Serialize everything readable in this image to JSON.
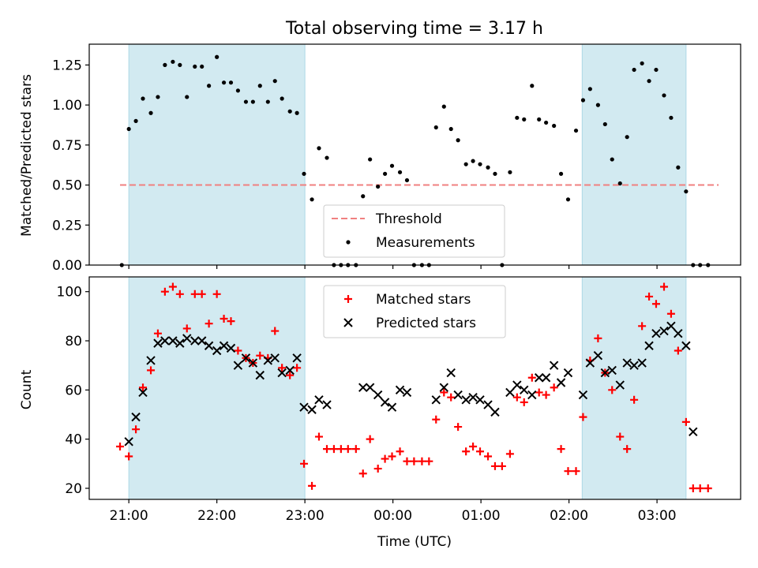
{
  "figure": {
    "title": "Total observing time = 3.17 h"
  },
  "chart_data": [
    {
      "type": "scatter",
      "panel": "top",
      "ylabel": "Matched/Predicted stars",
      "xlim": [
        20.55,
        27.95
      ],
      "ylim": [
        0,
        1.38
      ],
      "yticks": [
        0.0,
        0.25,
        0.5,
        0.75,
        1.0,
        1.25
      ],
      "ytick_labels": [
        "0.00",
        "0.25",
        "0.50",
        "0.75",
        "1.00",
        "1.25"
      ],
      "xticks": [
        21,
        22,
        23,
        24,
        25,
        26,
        27
      ],
      "shaded_spans": [
        [
          21.0,
          23.0
        ],
        [
          26.15,
          27.33
        ]
      ],
      "shade_color": "#add8e6",
      "threshold": {
        "name": "Threshold",
        "value": 0.5,
        "x_range": [
          20.9,
          27.7
        ],
        "color": "#f08080"
      },
      "legend": {
        "position": "lower-center",
        "entries": [
          "Threshold",
          "Measurements"
        ]
      },
      "series": [
        {
          "name": "Measurements",
          "color": "#000000",
          "x": [
            20.92,
            21.0,
            21.08,
            21.16,
            21.25,
            21.33,
            21.41,
            21.5,
            21.58,
            21.66,
            21.75,
            21.83,
            21.91,
            22.0,
            22.08,
            22.16,
            22.24,
            22.33,
            22.41,
            22.49,
            22.58,
            22.66,
            22.74,
            22.83,
            22.91,
            22.99,
            23.08,
            23.16,
            23.25,
            23.33,
            23.41,
            23.49,
            23.58,
            23.66,
            23.74,
            23.83,
            23.91,
            23.99,
            24.08,
            24.16,
            24.24,
            24.33,
            24.41,
            24.49,
            24.58,
            24.66,
            24.74,
            24.83,
            24.91,
            24.99,
            25.08,
            25.16,
            25.24,
            25.33,
            25.41,
            25.49,
            25.58,
            25.66,
            25.74,
            25.83,
            25.91,
            25.99,
            26.08,
            26.16,
            26.24,
            26.33,
            26.41,
            26.49,
            26.58,
            26.66,
            26.74,
            26.83,
            26.91,
            26.99,
            27.08,
            27.16,
            27.24,
            27.33,
            27.41,
            27.49,
            27.58
          ],
          "y": [
            0.0,
            0.85,
            0.9,
            1.04,
            0.95,
            1.05,
            1.25,
            1.27,
            1.25,
            1.05,
            1.24,
            1.24,
            1.12,
            1.3,
            1.14,
            1.14,
            1.09,
            1.02,
            1.02,
            1.12,
            1.02,
            1.15,
            1.04,
            0.96,
            0.95,
            0.57,
            0.41,
            0.73,
            0.67,
            0.0,
            0.0,
            0.0,
            0.0,
            0.43,
            0.66,
            0.49,
            0.57,
            0.62,
            0.58,
            0.53,
            0.0,
            0.0,
            0.0,
            0.86,
            0.99,
            0.85,
            0.78,
            0.63,
            0.65,
            0.63,
            0.61,
            0.57,
            0.0,
            0.58,
            0.92,
            0.91,
            1.12,
            0.91,
            0.89,
            0.87,
            0.57,
            0.41,
            0.84,
            1.03,
            1.1,
            1.0,
            0.88,
            0.66,
            0.51,
            0.8,
            1.22,
            1.26,
            1.15,
            1.22,
            1.06,
            0.92,
            0.61,
            0.46,
            0.0,
            0.0,
            0.0
          ]
        }
      ]
    },
    {
      "type": "scatter",
      "panel": "bottom",
      "xlabel": "Time (UTC)",
      "ylabel": "Count",
      "xlim": [
        20.55,
        27.95
      ],
      "ylim": [
        15.5,
        106
      ],
      "yticks": [
        20,
        40,
        60,
        80,
        100
      ],
      "xticks": [
        21,
        22,
        23,
        24,
        25,
        26,
        27
      ],
      "xtick_labels": [
        "21:00",
        "22:00",
        "23:00",
        "00:00",
        "01:00",
        "02:00",
        "03:00"
      ],
      "shaded_spans": [
        [
          21.0,
          23.0
        ],
        [
          26.15,
          27.33
        ]
      ],
      "shade_color": "#add8e6",
      "legend": {
        "position": "top-center",
        "entries": [
          "Matched stars",
          "Predicted stars"
        ]
      },
      "series": [
        {
          "name": "Matched stars",
          "marker": "+",
          "color": "#ff0000",
          "x": [
            20.9,
            21.0,
            21.08,
            21.16,
            21.25,
            21.33,
            21.41,
            21.5,
            21.58,
            21.66,
            21.75,
            21.83,
            21.91,
            22.0,
            22.08,
            22.16,
            22.24,
            22.33,
            22.41,
            22.49,
            22.58,
            22.66,
            22.74,
            22.83,
            22.91,
            22.99,
            23.08,
            23.16,
            23.25,
            23.33,
            23.41,
            23.49,
            23.58,
            23.66,
            23.74,
            23.83,
            23.91,
            23.99,
            24.08,
            24.16,
            24.24,
            24.33,
            24.41,
            24.49,
            24.58,
            24.66,
            24.74,
            24.83,
            24.91,
            24.99,
            25.08,
            25.16,
            25.24,
            25.33,
            25.41,
            25.49,
            25.58,
            25.66,
            25.74,
            25.83,
            25.91,
            25.99,
            26.08,
            26.16,
            26.24,
            26.33,
            26.41,
            26.49,
            26.58,
            26.66,
            26.74,
            26.83,
            26.91,
            26.99,
            27.08,
            27.16,
            27.24,
            27.33,
            27.41,
            27.49,
            27.58
          ],
          "y": [
            37,
            33,
            44,
            61,
            68,
            83,
            100,
            102,
            99,
            85,
            99,
            99,
            87,
            99,
            89,
            88,
            76,
            73,
            71,
            74,
            73,
            84,
            69,
            66,
            69,
            30,
            21,
            41,
            36,
            36,
            36,
            36,
            36,
            26,
            40,
            28,
            32,
            33,
            35,
            31,
            31,
            31,
            31,
            48,
            59,
            57,
            45,
            35,
            37,
            35,
            33,
            29,
            29,
            34,
            57,
            55,
            65,
            59,
            58,
            61,
            36,
            27,
            27,
            49,
            72,
            81,
            67,
            60,
            41,
            36,
            56,
            86,
            98,
            95,
            102,
            91,
            76,
            47,
            20,
            20,
            20
          ]
        },
        {
          "name": "Predicted stars",
          "marker": "x",
          "color": "#000000",
          "x": [
            21.0,
            21.08,
            21.16,
            21.25,
            21.33,
            21.41,
            21.5,
            21.58,
            21.66,
            21.75,
            21.83,
            21.91,
            22.0,
            22.08,
            22.16,
            22.24,
            22.33,
            22.41,
            22.49,
            22.58,
            22.66,
            22.74,
            22.83,
            22.91,
            22.99,
            23.08,
            23.16,
            23.25,
            23.66,
            23.74,
            23.83,
            23.91,
            23.99,
            24.08,
            24.16,
            24.49,
            24.58,
            24.66,
            24.74,
            24.83,
            24.91,
            24.99,
            25.08,
            25.16,
            25.33,
            25.41,
            25.49,
            25.58,
            25.66,
            25.74,
            25.83,
            25.91,
            25.99,
            26.16,
            26.24,
            26.33,
            26.41,
            26.49,
            26.58,
            26.66,
            26.74,
            26.83,
            26.91,
            26.99,
            27.08,
            27.16,
            27.24,
            27.33,
            27.41
          ],
          "y": [
            39,
            49,
            59,
            72,
            79,
            80,
            80,
            79,
            81,
            80,
            80,
            78,
            76,
            78,
            77,
            70,
            73,
            71,
            66,
            72,
            73,
            67,
            68,
            73,
            53,
            52,
            56,
            54,
            61,
            61,
            58,
            55,
            53,
            60,
            59,
            56,
            61,
            67,
            58,
            56,
            57,
            56,
            54,
            51,
            59,
            62,
            60,
            58,
            65,
            65,
            70,
            63,
            67,
            58,
            71,
            74,
            67,
            68,
            62,
            71,
            70,
            71,
            78,
            83,
            84,
            86,
            83,
            78,
            43
          ]
        }
      ]
    }
  ]
}
